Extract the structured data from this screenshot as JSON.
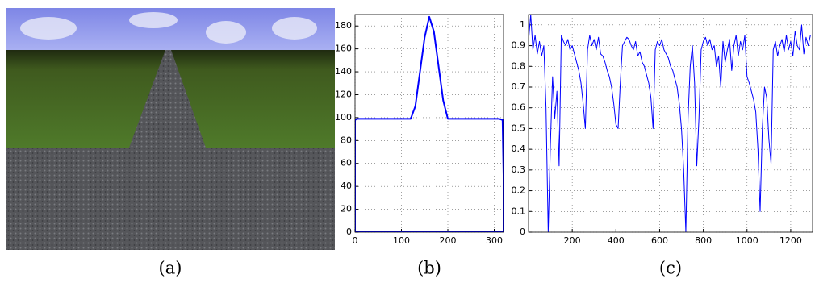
{
  "image_caption": "(a)",
  "chart_data": [
    {
      "type": "line",
      "caption": "(b)",
      "grid": true,
      "color": "#0000ff",
      "xlim": [
        0,
        320
      ],
      "ylim": [
        0,
        190
      ],
      "xticks": [
        0,
        100,
        200,
        300
      ],
      "yticks": [
        0,
        20,
        40,
        60,
        80,
        100,
        120,
        140,
        160,
        180
      ],
      "x": [
        0,
        0,
        5,
        120,
        130,
        140,
        150,
        160,
        170,
        180,
        190,
        200,
        310,
        318,
        320,
        320,
        0
      ],
      "values": [
        0,
        98,
        99,
        99,
        110,
        140,
        170,
        188,
        175,
        145,
        115,
        99,
        99,
        98,
        50,
        0,
        0
      ]
    },
    {
      "type": "line",
      "caption": "(c)",
      "grid": true,
      "color": "#0000ff",
      "xlim": [
        0,
        1300
      ],
      "ylim": [
        0,
        1.05
      ],
      "xticks": [
        200,
        400,
        600,
        800,
        1000,
        1200
      ],
      "yticks": [
        0,
        0.1,
        0.2,
        0.3,
        0.4,
        0.5,
        0.6,
        0.7,
        0.8,
        0.9,
        1
      ],
      "x": [
        0,
        10,
        20,
        30,
        40,
        50,
        60,
        70,
        80,
        90,
        100,
        110,
        120,
        130,
        140,
        150,
        160,
        170,
        180,
        190,
        200,
        210,
        220,
        230,
        240,
        250,
        260,
        270,
        280,
        290,
        300,
        310,
        320,
        330,
        340,
        350,
        360,
        370,
        380,
        390,
        400,
        410,
        420,
        430,
        440,
        450,
        460,
        470,
        480,
        490,
        500,
        510,
        520,
        530,
        540,
        550,
        560,
        570,
        580,
        590,
        600,
        610,
        620,
        630,
        640,
        650,
        660,
        670,
        680,
        690,
        700,
        710,
        720,
        730,
        740,
        750,
        760,
        770,
        780,
        790,
        800,
        810,
        820,
        830,
        840,
        850,
        860,
        870,
        880,
        890,
        900,
        910,
        920,
        930,
        940,
        950,
        960,
        970,
        980,
        990,
        1000,
        1010,
        1020,
        1030,
        1040,
        1050,
        1060,
        1070,
        1080,
        1090,
        1100,
        1110,
        1120,
        1130,
        1140,
        1150,
        1160,
        1170,
        1180,
        1190,
        1200,
        1210,
        1220,
        1230,
        1240,
        1250,
        1260,
        1270,
        1280,
        1290
      ],
      "values": [
        0.92,
        1.05,
        0.88,
        0.95,
        0.86,
        0.92,
        0.85,
        0.9,
        0.6,
        0.0,
        0.42,
        0.75,
        0.55,
        0.68,
        0.32,
        0.95,
        0.92,
        0.9,
        0.93,
        0.88,
        0.9,
        0.86,
        0.82,
        0.78,
        0.72,
        0.62,
        0.5,
        0.88,
        0.95,
        0.9,
        0.93,
        0.88,
        0.94,
        0.86,
        0.85,
        0.82,
        0.78,
        0.75,
        0.7,
        0.62,
        0.52,
        0.5,
        0.72,
        0.9,
        0.92,
        0.94,
        0.93,
        0.9,
        0.88,
        0.92,
        0.85,
        0.87,
        0.82,
        0.8,
        0.76,
        0.72,
        0.65,
        0.5,
        0.88,
        0.92,
        0.9,
        0.93,
        0.88,
        0.86,
        0.84,
        0.8,
        0.78,
        0.74,
        0.7,
        0.62,
        0.5,
        0.3,
        0.0,
        0.55,
        0.8,
        0.9,
        0.72,
        0.32,
        0.55,
        0.88,
        0.92,
        0.94,
        0.9,
        0.93,
        0.88,
        0.9,
        0.8,
        0.85,
        0.7,
        0.92,
        0.82,
        0.88,
        0.93,
        0.78,
        0.9,
        0.95,
        0.85,
        0.92,
        0.88,
        0.95,
        0.75,
        0.72,
        0.68,
        0.64,
        0.58,
        0.4,
        0.1,
        0.5,
        0.7,
        0.65,
        0.45,
        0.33,
        0.88,
        0.92,
        0.85,
        0.9,
        0.93,
        0.87,
        0.95,
        0.88,
        0.92,
        0.85,
        0.97,
        0.9,
        0.88,
        1.0,
        0.86,
        0.94,
        0.9,
        0.95
      ]
    }
  ]
}
